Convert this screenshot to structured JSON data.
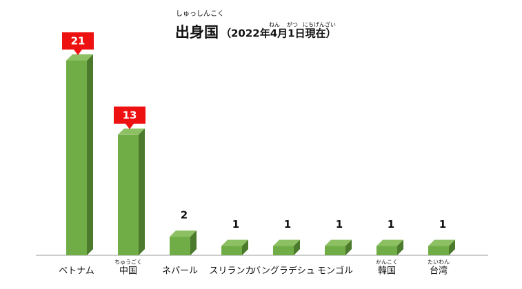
{
  "chart_data": {
    "type": "bar3d",
    "title": "出身国",
    "title_ruby": "しゅっしんこく",
    "subtitle": "（2022年4月1日現在）",
    "subtitle_ruby": [
      "ねん",
      "がつ",
      "にちげんざい"
    ],
    "categories": [
      "ベトナム",
      "中国",
      "ネパール",
      "スリランカ",
      "バングラデシュ",
      "モンゴル",
      "韓国",
      "台湾"
    ],
    "category_ruby": [
      null,
      "ちゅうごく",
      null,
      null,
      null,
      null,
      "かんこく",
      "たいわん"
    ],
    "values": [
      21,
      13,
      2,
      1,
      1,
      1,
      1,
      1
    ],
    "color": "#70ad47",
    "label_box_colors": [
      "#ee1111",
      "#ee1111",
      null,
      null,
      null,
      null,
      null,
      null
    ]
  }
}
